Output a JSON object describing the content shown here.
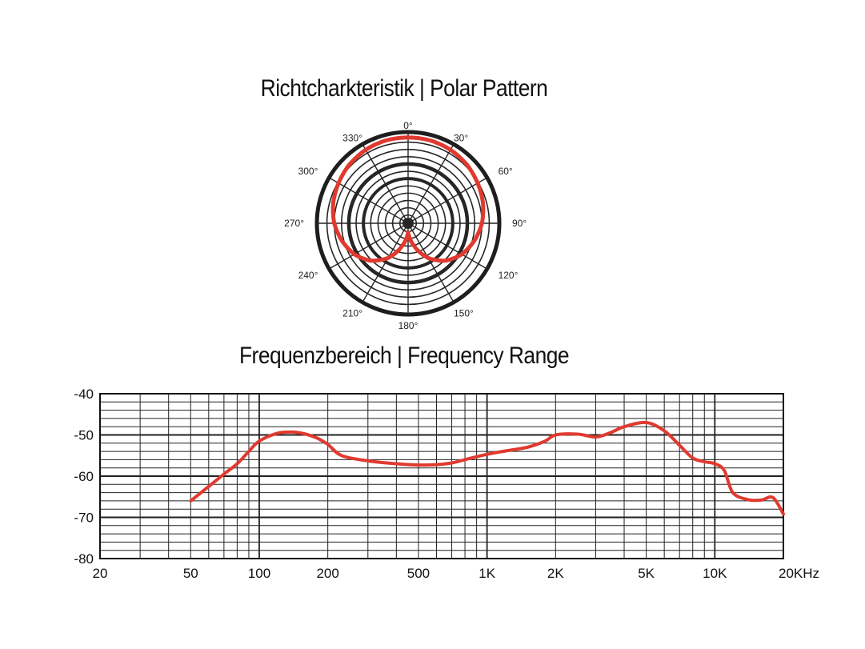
{
  "chart_data": [
    {
      "type": "polar",
      "title": "Richtcharkteristik | Polar Pattern",
      "angle_labels": [
        "0°",
        "30°",
        "60°",
        "90°",
        "120°",
        "150°",
        "180°",
        "210°",
        "240°",
        "270°",
        "300°",
        "330°"
      ],
      "angles_deg": [
        0,
        30,
        60,
        90,
        120,
        150,
        180,
        210,
        240,
        270,
        300,
        330
      ],
      "pattern": "cardioid",
      "series": [
        {
          "color": "#e03a2f",
          "angle_deg": [
            0,
            15,
            30,
            45,
            60,
            75,
            90,
            105,
            120,
            135,
            150,
            165,
            180,
            195,
            210,
            225,
            240,
            255,
            270,
            285,
            300,
            315,
            330,
            345
          ],
          "radius_rel": [
            0.94,
            0.94,
            0.93,
            0.91,
            0.88,
            0.85,
            0.81,
            0.75,
            0.68,
            0.58,
            0.44,
            0.26,
            0.1,
            0.26,
            0.44,
            0.58,
            0.68,
            0.75,
            0.81,
            0.85,
            0.88,
            0.91,
            0.93,
            0.94
          ]
        }
      ]
    },
    {
      "type": "line",
      "title": "Frequenzbereich | Frequency Range",
      "x_scale": "log",
      "xlim": [
        20,
        20000
      ],
      "ylim": [
        -80,
        -40
      ],
      "xtick_values": [
        20,
        50,
        100,
        200,
        500,
        1000,
        2000,
        5000,
        10000,
        20000
      ],
      "xtick_labels": [
        "20",
        "50",
        "100",
        "200",
        "500",
        "1K",
        "2K",
        "5K",
        "10K",
        "20KHz"
      ],
      "ytick_values": [
        -40,
        -50,
        -60,
        -70,
        -80
      ],
      "ytick_labels": [
        "-40",
        "-50",
        "-60",
        "-70",
        "-80"
      ],
      "grid": true,
      "series": [
        {
          "color": "#e03a2f",
          "x": [
            50,
            60,
            70,
            80,
            90,
            100,
            120,
            140,
            160,
            180,
            200,
            230,
            300,
            400,
            500,
            600,
            700,
            800,
            1000,
            1200,
            1500,
            1800,
            2000,
            2500,
            3000,
            3500,
            4000,
            5000,
            6000,
            7000,
            8000,
            9000,
            10000,
            11000,
            12000,
            14000,
            16000,
            18000,
            20000
          ],
          "y": [
            -66,
            -62.5,
            -59.5,
            -57,
            -54,
            -51.5,
            -49.6,
            -49.3,
            -49.8,
            -50.8,
            -52.3,
            -55,
            -56.3,
            -57,
            -57.3,
            -57.2,
            -56.8,
            -56,
            -54.7,
            -53.9,
            -53,
            -51.5,
            -50,
            -49.8,
            -50.5,
            -49.4,
            -48,
            -47,
            -49,
            -52.5,
            -55.6,
            -56.5,
            -57,
            -58.6,
            -64,
            -65.7,
            -65.8,
            -65.2,
            -69.2
          ]
        }
      ]
    }
  ]
}
